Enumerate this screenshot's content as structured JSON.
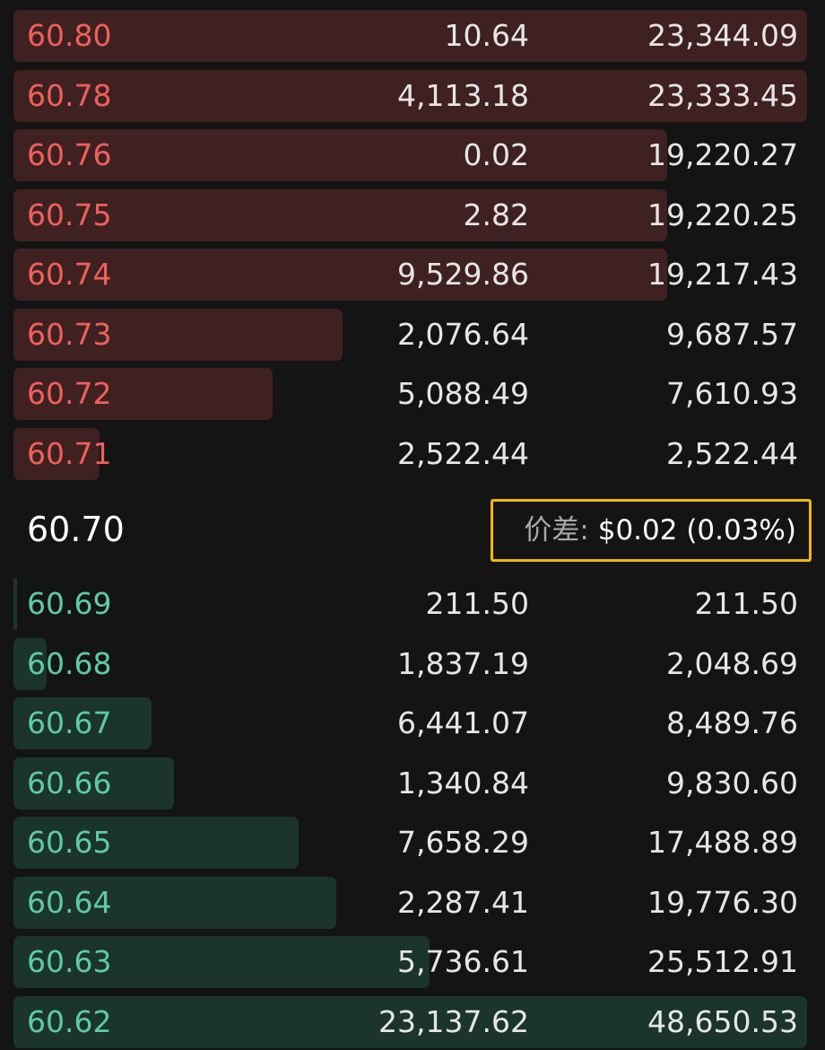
{
  "asks": [
    {
      "price": "60.80",
      "size": "10.64",
      "total": "23,344.09"
    },
    {
      "price": "60.78",
      "size": "4,113.18",
      "total": "23,333.45"
    },
    {
      "price": "60.76",
      "size": "0.02",
      "total": "19,220.27"
    },
    {
      "price": "60.75",
      "size": "2.82",
      "total": "19,220.25"
    },
    {
      "price": "60.74",
      "size": "9,529.86",
      "total": "19,217.43"
    },
    {
      "price": "60.73",
      "size": "2,076.64",
      "total": "9,687.57"
    },
    {
      "price": "60.72",
      "size": "5,088.49",
      "total": "7,610.93"
    },
    {
      "price": "60.71",
      "size": "2,522.44",
      "total": "2,522.44"
    }
  ],
  "mid_price": "60.70",
  "spread": {
    "label": "价差:",
    "value": "$0.02 (0.03%)"
  },
  "bids": [
    {
      "price": "60.69",
      "size": "211.50",
      "total": "211.50"
    },
    {
      "price": "60.68",
      "size": "1,837.19",
      "total": "2,048.69"
    },
    {
      "price": "60.67",
      "size": "6,441.07",
      "total": "8,489.76"
    },
    {
      "price": "60.66",
      "size": "1,340.84",
      "total": "9,830.60"
    },
    {
      "price": "60.65",
      "size": "7,658.29",
      "total": "17,488.89"
    },
    {
      "price": "60.64",
      "size": "2,287.41",
      "total": "19,776.30"
    },
    {
      "price": "60.63",
      "size": "5,736.61",
      "total": "25,512.91"
    },
    {
      "price": "60.62",
      "size": "23,137.62",
      "total": "48,650.53"
    }
  ]
}
